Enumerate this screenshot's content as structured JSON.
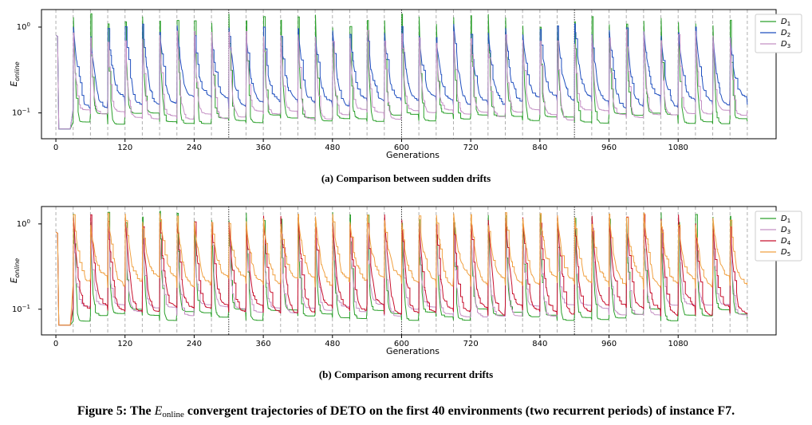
{
  "figure_caption": "Figure 5: The E_online convergent trajectories of DETO on the first 40 environments (two recurrent periods) of instance F7.",
  "figure_caption_parts": {
    "prefix": "Figure 5: The ",
    "symbol": "E",
    "subscript": "online",
    "suffix": " convergent trajectories of DETO on the first 40 environments (two recurrent periods) of instance F7."
  },
  "colors": {
    "D1": "#2ca02c",
    "D2": "#1f4fbf",
    "D3": "#c490c4",
    "D4": "#c8102e",
    "D5": "#f0a040",
    "drift_line": "#b0b0b0",
    "period_line": "#333333"
  },
  "chart_data": [
    {
      "type": "line",
      "caption": "(a) Comparison between sudden drifts",
      "xlabel": "Generations",
      "ylabel": "E",
      "ylabel_sub": "online",
      "yscale": "log",
      "xlim": [
        -25,
        1250
      ],
      "ylim": [
        0.05,
        1.6
      ],
      "xticks": [
        0,
        120,
        240,
        360,
        480,
        600,
        720,
        840,
        960,
        1080
      ],
      "yticks": [
        {
          "value": 1.0,
          "base": "10",
          "exp": "0"
        },
        {
          "value": 0.1,
          "base": "10",
          "exp": "−1"
        }
      ],
      "grid": false,
      "legend": "top-right",
      "drift_interval": 30,
      "period_boundaries": [
        300,
        600,
        900
      ],
      "series": [
        {
          "name": "D",
          "sub": "1",
          "color_key": "D1",
          "start": 1.3,
          "floor": 0.085,
          "sharpness": 4.5
        },
        {
          "name": "D",
          "sub": "2",
          "color_key": "D2",
          "start": 1.0,
          "floor": 0.13,
          "sharpness": 1.6
        },
        {
          "name": "D",
          "sub": "3",
          "color_key": "D3",
          "start": 0.85,
          "floor": 0.095,
          "sharpness": 3.0
        }
      ]
    },
    {
      "type": "line",
      "caption": "(b) Comparison among recurrent drifts",
      "xlabel": "Generations",
      "ylabel": "E",
      "ylabel_sub": "online",
      "yscale": "log",
      "xlim": [
        -25,
        1250
      ],
      "ylim": [
        0.05,
        1.6
      ],
      "xticks": [
        0,
        120,
        240,
        360,
        480,
        600,
        720,
        840,
        960,
        1080
      ],
      "yticks": [
        {
          "value": 1.0,
          "base": "10",
          "exp": "0"
        },
        {
          "value": 0.1,
          "base": "10",
          "exp": "−1"
        }
      ],
      "grid": false,
      "legend": "top-right",
      "drift_interval": 30,
      "period_boundaries": [
        300,
        600,
        900
      ],
      "series": [
        {
          "name": "D",
          "sub": "1",
          "color_key": "D1",
          "start": 1.3,
          "floor": 0.085,
          "sharpness": 4.5
        },
        {
          "name": "D",
          "sub": "3",
          "color_key": "D3",
          "start": 0.85,
          "floor": 0.095,
          "sharpness": 3.0
        },
        {
          "name": "D",
          "sub": "4",
          "color_key": "D4",
          "start": 1.2,
          "floor": 0.095,
          "sharpness": 2.0
        },
        {
          "name": "D",
          "sub": "5",
          "color_key": "D5",
          "start": 1.25,
          "floor": 0.2,
          "sharpness": 1.4
        }
      ]
    }
  ]
}
